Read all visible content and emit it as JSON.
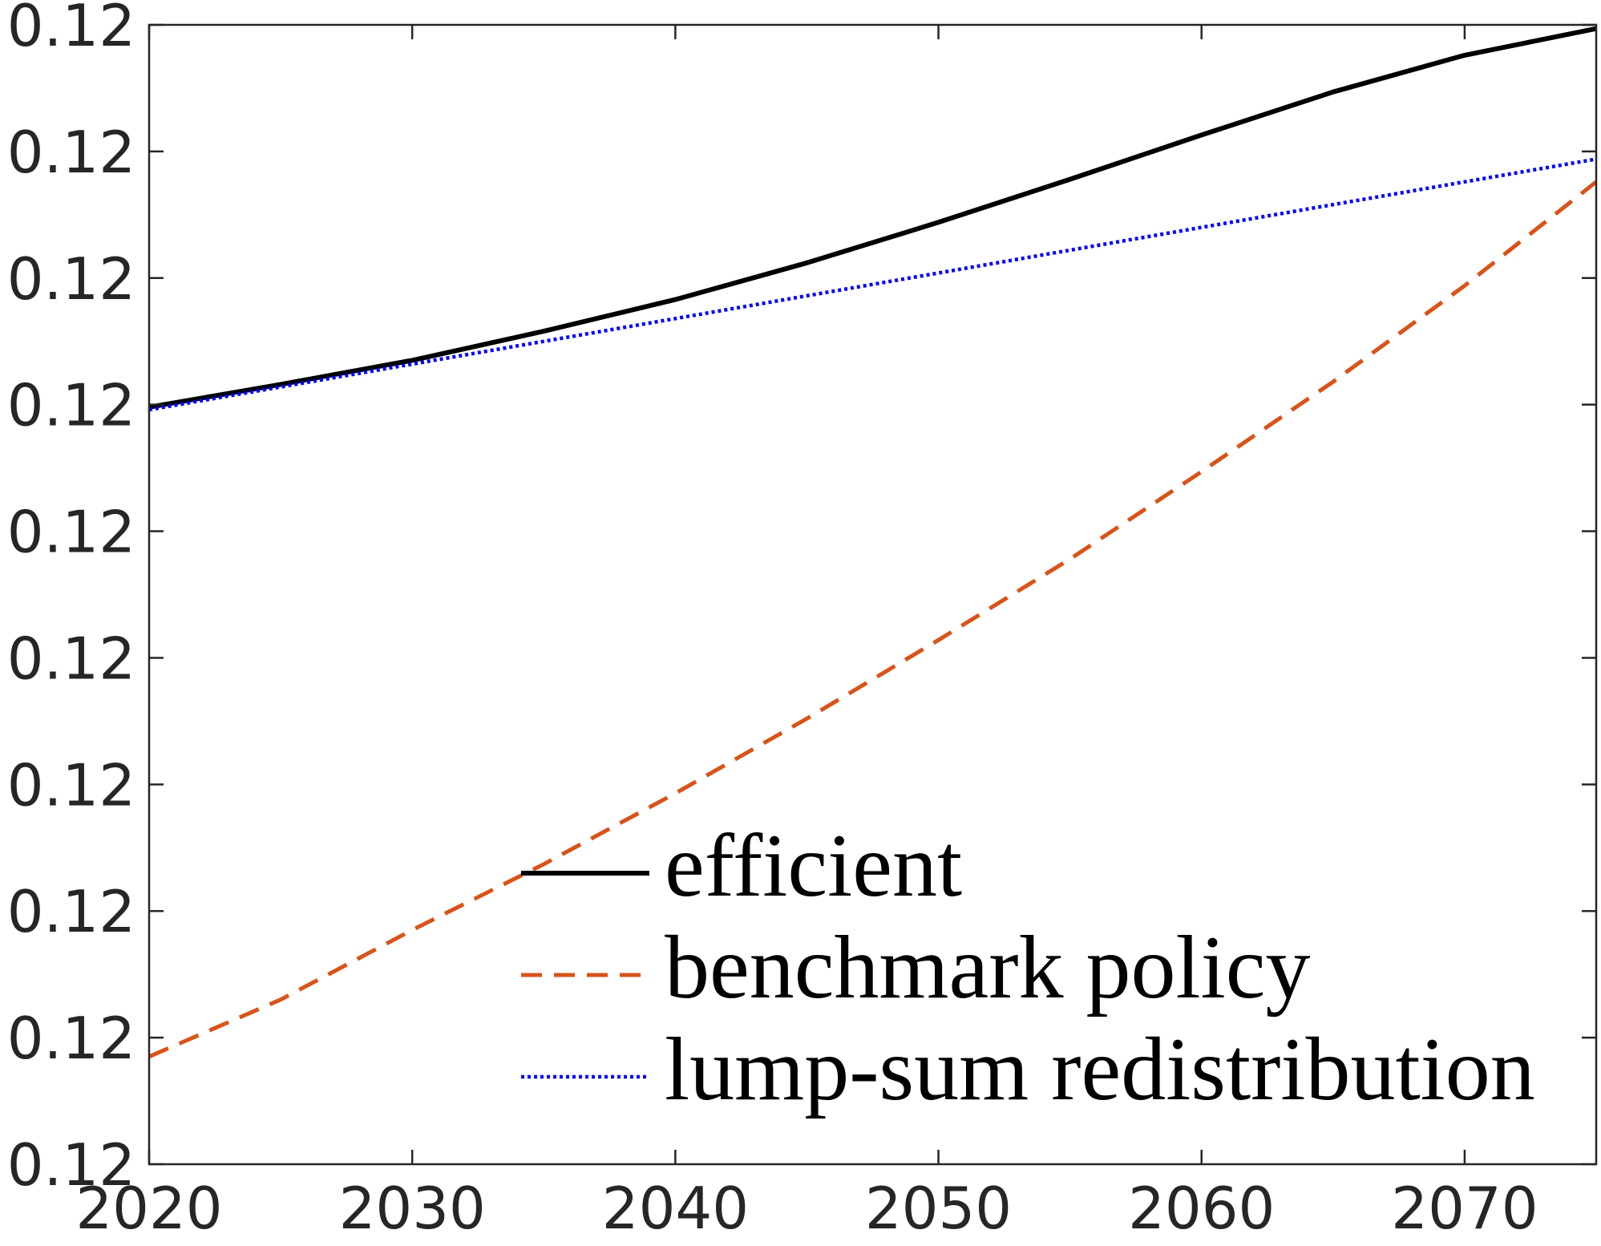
{
  "chart_data": {
    "type": "line",
    "x": [
      2020,
      2025,
      2030,
      2035,
      2040,
      2045,
      2050,
      2055,
      2060,
      2065,
      2070,
      2075
    ],
    "xlim": [
      2020,
      2075
    ],
    "xticks": [
      2020,
      2030,
      2040,
      2050,
      2060,
      2070
    ],
    "xtick_labels": [
      "2020",
      "2030",
      "2040",
      "2050",
      "2060",
      "2070"
    ],
    "ylim": [
      0.12,
      0.1209
    ],
    "yticks": [
      0.12,
      0.1201,
      0.1202,
      0.1203,
      0.1204,
      0.1205,
      0.1206,
      0.1207,
      0.1208,
      0.1209
    ],
    "ytick_labels": [
      "0.12",
      "0.12",
      "0.12",
      "0.12",
      "0.12",
      "0.12",
      "0.12",
      "0.12",
      "0.12",
      "0.12"
    ],
    "grid": false,
    "legend": {
      "placement": "bottom-right",
      "box": false
    },
    "series": [
      {
        "name": "efficient",
        "color": "#000000",
        "style": "solid",
        "values": [
          0.120598,
          0.120616,
          0.120635,
          0.120658,
          0.120683,
          0.120712,
          0.120744,
          0.120778,
          0.120813,
          0.120847,
          0.120876,
          0.120897
        ]
      },
      {
        "name": "benchmark policy",
        "color": "#D95319",
        "style": "dashed",
        "values": [
          0.120085,
          0.12013,
          0.120185,
          0.120237,
          0.120293,
          0.120352,
          0.120414,
          0.120478,
          0.120547,
          0.120618,
          0.120694,
          0.120776
        ]
      },
      {
        "name": "lump-sum redistribution",
        "color": "#0000FF",
        "style": "dotted",
        "values": [
          0.120596,
          0.120614,
          0.120632,
          0.12065,
          0.120668,
          0.120686,
          0.120704,
          0.120722,
          0.12074,
          0.120758,
          0.120776,
          0.120794
        ]
      }
    ]
  }
}
